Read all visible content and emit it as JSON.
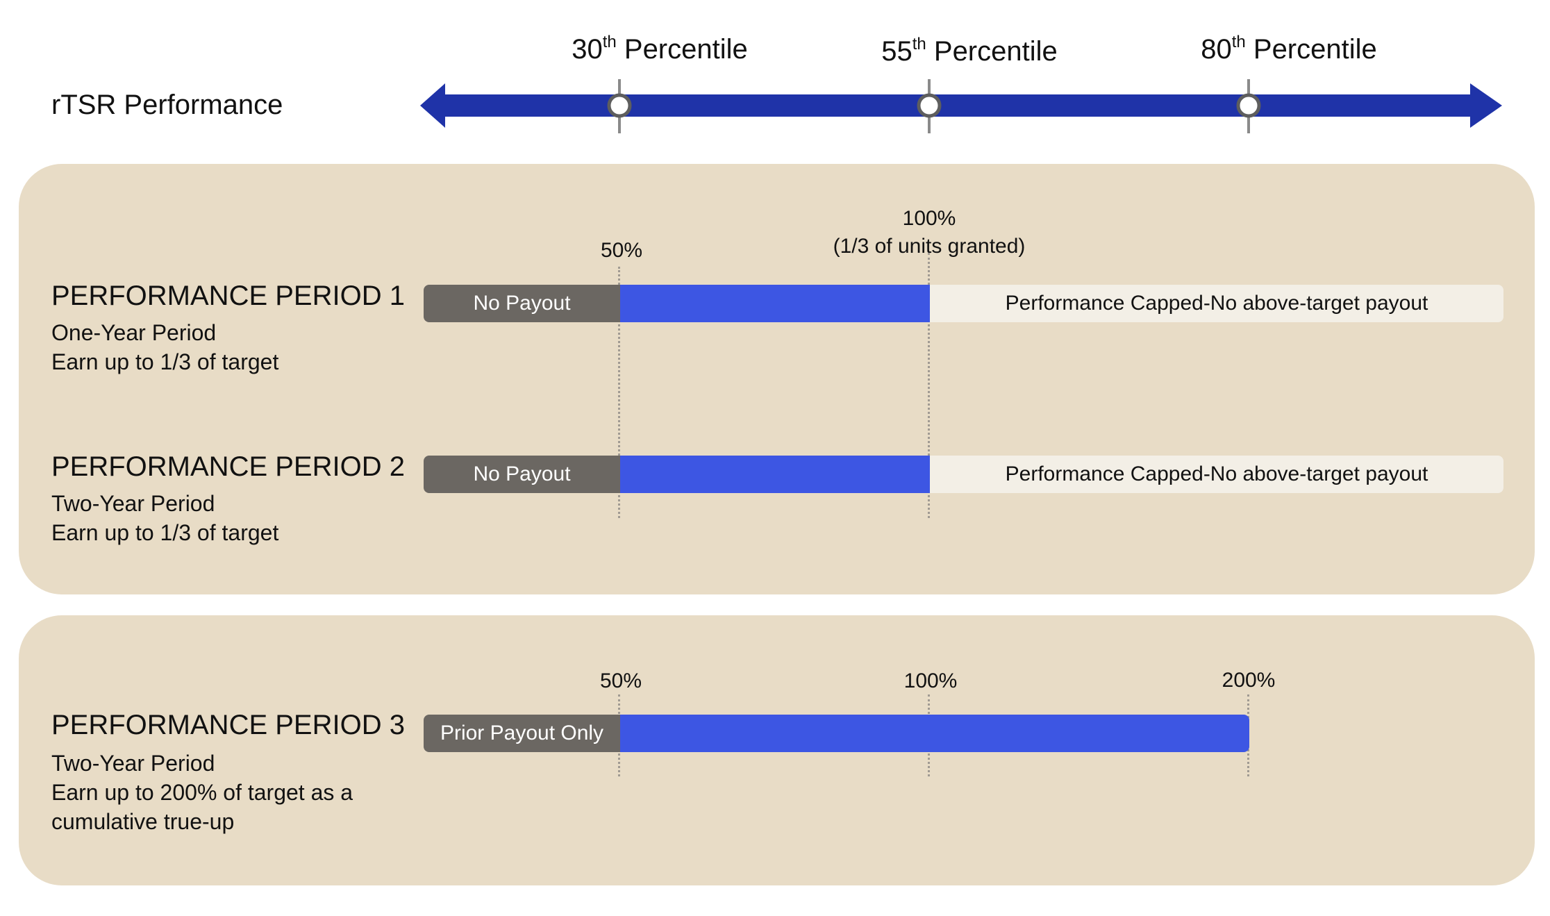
{
  "header": {
    "axis_title": "rTSR Performance",
    "percentiles": [
      {
        "number": "30",
        "suffix": "th",
        "word": "Percentile"
      },
      {
        "number": "55",
        "suffix": "th",
        "word": "Percentile"
      },
      {
        "number": "80",
        "suffix": "th",
        "word": "Percentile"
      }
    ]
  },
  "periods": [
    {
      "title": "PERFORMANCE PERIOD 1",
      "line1": "One-Year Period",
      "line2": "Earn up to 1/3 of target",
      "gray_label": "No Payout",
      "capped_label": "Performance Capped-No above-target payout",
      "tick_50": "50%",
      "tick_100": "100%",
      "tick_100_note": "(1/3 of units granted)"
    },
    {
      "title": "PERFORMANCE PERIOD 2",
      "line1": "Two-Year Period",
      "line2": "Earn up to 1/3 of target",
      "gray_label": "No Payout",
      "capped_label": "Performance Capped-No above-target payout"
    },
    {
      "title": "PERFORMANCE PERIOD 3",
      "line1": "Two-Year Period",
      "line2": "Earn up to 200% of target as a",
      "line3": "cumulative true-up",
      "gray_label": "Prior Payout Only",
      "tick_50": "50%",
      "tick_100": "100%",
      "tick_200": "200%"
    }
  ],
  "colors": {
    "axis_blue": "#1f33a8",
    "bar_blue": "#3d56e3",
    "bar_gray": "#6b6762",
    "panel_beige": "#e8dcc6",
    "capped_cream": "#f3efe6"
  }
}
